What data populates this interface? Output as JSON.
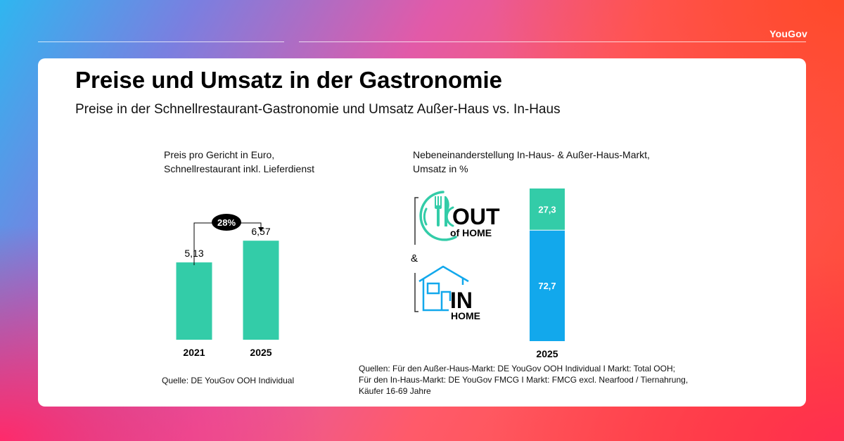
{
  "brand": "YouGov",
  "title": "Preise und Umsatz in der Gastronomie",
  "subtitle": "Preise in der Schnellrestaurant-Gastronomie und Umsatz Außer-Haus vs. In-Haus",
  "colors": {
    "teal": "#33cca8",
    "blue": "#12a8ec",
    "black": "#000000"
  },
  "chart_data": [
    {
      "type": "bar",
      "title_lines": [
        "Preis pro Gericht in Euro,",
        "Schnellrestaurant inkl. Lieferdienst"
      ],
      "categories": [
        "2021",
        "2025"
      ],
      "values": [
        5.13,
        6.57
      ],
      "value_labels": [
        "5,13",
        "6,57"
      ],
      "ylim": [
        0,
        7.7
      ],
      "change_label": "28%",
      "source": "Quelle: DE YouGov OOH Individual"
    },
    {
      "type": "bar",
      "stacked": true,
      "title_lines": [
        "Nebeneinanderstellung In-Haus- & Außer-Haus-Markt,",
        "Umsatz in %"
      ],
      "categories": [
        "2025"
      ],
      "series": [
        {
          "name": "IN HOME",
          "values": [
            72.7
          ],
          "label": "72,7"
        },
        {
          "name": "OUT of HOME",
          "values": [
            27.3
          ],
          "label": "27,3"
        }
      ],
      "ylim": [
        0,
        100
      ],
      "legend": {
        "out_big": "OUT",
        "out_small": "of HOME",
        "amp": "&",
        "in_big": "IN",
        "in_small": "HOME"
      },
      "source_lines": [
        "Quellen: Für den Außer-Haus-Markt: DE YouGov OOH Individual I Markt: Total OOH;",
        "Für den In-Haus-Markt: DE YouGov FMCG I Markt: FMCG excl. Nearfood / Tiernahrung,",
        "Käufer 16-69 Jahre"
      ]
    }
  ]
}
